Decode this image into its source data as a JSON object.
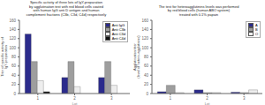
{
  "chart_data": [
    {
      "type": "bar",
      "title": "Specific activity of three lots of IgY-preparation\nby agglutination test with red blood cells coated\nwith human IgG anti D antigen and human\ncomplement fractions (C3b, C3d, C4d) respectively",
      "x_label": "Lot",
      "y_label": "Titer of specific activity of\nIgY-preparation",
      "categories": [
        "1",
        "2",
        "3"
      ],
      "series": [
        {
          "name": "Anti IgG",
          "color": "#2b2b8c",
          "values": [
            130,
            35,
            35
          ]
        },
        {
          "name": "Anti C3b",
          "color": "#9e9e9e",
          "values": [
            70,
            70,
            70
          ]
        },
        {
          "name": "Anti C3d",
          "color": "#eeeeee",
          "values": [
            28,
            15,
            18
          ]
        },
        {
          "name": "Anti C4d",
          "color": "#111111",
          "values": [
            4,
            0,
            0
          ]
        }
      ],
      "ylim": [
        0,
        160
      ],
      "yticks": [
        0,
        20,
        40,
        60,
        80,
        100,
        120,
        140,
        160
      ],
      "grid": false,
      "legend": "upper right"
    },
    {
      "type": "bar",
      "title": "The test for heteroagglutinins levels was performed\nby red blood cells (human ABO system)\ntreated with 0.1% papain",
      "x_label": "Lot",
      "y_label": "Agglutination titer\n(level of hetero-agglutinins)",
      "categories": [
        "1",
        "2",
        "3"
      ],
      "series": [
        {
          "name": "A",
          "color": "#2b2b8c",
          "values": [
            4,
            8,
            3
          ]
        },
        {
          "name": "B",
          "color": "#9e9e9e",
          "values": [
            18,
            2,
            2
          ]
        },
        {
          "name": "O",
          "color": "#eeeeee",
          "values": [
            2,
            2,
            8
          ]
        }
      ],
      "ylim": [
        0,
        160
      ],
      "yticks": [
        0,
        20,
        40,
        60,
        80,
        100,
        120,
        140,
        160
      ],
      "grid": false,
      "legend": "upper right"
    }
  ]
}
